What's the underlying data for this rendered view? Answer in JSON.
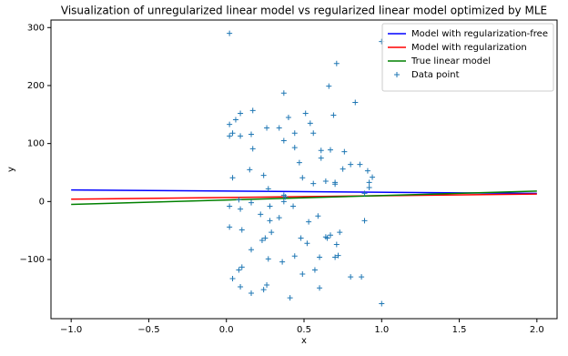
{
  "chart_data": {
    "type": "line",
    "title": "Visualization of unregularized linear model vs regularized linear model optimized by MLE",
    "x_label": "x",
    "y_label": "y",
    "xlim": [
      -1.13,
      2.13
    ],
    "ylim": [
      -202,
      313
    ],
    "xticks": [
      {
        "value": -1,
        "label": "−1.0"
      },
      {
        "value": -0.5,
        "label": "−0.5"
      },
      {
        "value": 0,
        "label": "0.0"
      },
      {
        "value": 0.5,
        "label": "0.5"
      },
      {
        "value": 1,
        "label": "1.0"
      },
      {
        "value": 1.5,
        "label": "1.5"
      },
      {
        "value": 2,
        "label": "2.0"
      }
    ],
    "yticks": [
      {
        "value": -100,
        "label": "−100"
      },
      0,
      100,
      200,
      300
    ],
    "legend": "upper right",
    "series": [
      {
        "name": "Model with regularization-free",
        "type": "line",
        "color": "#0000ff",
        "x": [
          -1,
          2
        ],
        "values": [
          20,
          14
        ]
      },
      {
        "name": "Model with regularization",
        "type": "line",
        "color": "#ff0000",
        "x": [
          -1,
          2
        ],
        "values": [
          4,
          13
        ]
      },
      {
        "name": "True linear model",
        "type": "line",
        "color": "#008000",
        "x": [
          -1,
          2
        ],
        "values": [
          -5,
          18
        ]
      },
      {
        "name": "Data point",
        "type": "scatter",
        "color": "#1f77b4",
        "x": [
          0.02,
          1.0,
          0.71,
          0.66,
          0.83,
          0.37,
          0.17,
          0.09,
          0.51,
          0.69,
          0.02,
          0.06,
          0.4,
          0.26,
          0.54,
          0.02,
          0.04,
          0.09,
          0.16,
          0.44,
          0.56,
          0.34,
          0.37,
          0.17,
          0.44,
          0.61,
          0.67,
          0.76,
          0.61,
          0.47,
          0.8,
          0.86,
          0.75,
          0.91,
          0.94,
          0.92,
          0.92,
          0.7,
          0.7,
          0.64,
          0.56,
          0.49,
          0.04,
          0.15,
          0.24,
          0.27,
          0.37,
          0.38,
          0.37,
          0.08,
          0.16,
          0.02,
          0.09,
          0.28,
          0.43,
          0.89,
          0.22,
          0.59,
          0.34,
          0.28,
          0.53,
          0.02,
          0.1,
          0.29,
          0.73,
          0.89,
          0.67,
          0.64,
          0.65,
          0.48,
          0.23,
          0.25,
          0.71,
          0.52,
          0.16,
          0.44,
          0.6,
          0.7,
          0.72,
          0.27,
          0.36,
          0.1,
          0.08,
          0.57,
          0.04,
          0.49,
          0.8,
          0.87,
          0.26,
          0.24,
          0.09,
          0.6,
          0.16,
          0.41,
          1.0
        ],
        "values": [
          290,
          276,
          238,
          199,
          171,
          187,
          157,
          152,
          152,
          149,
          133,
          141,
          145,
          127,
          135,
          113,
          118,
          113,
          116,
          118,
          118,
          127,
          105,
          91,
          93,
          88,
          89,
          86,
          75,
          67,
          64,
          64,
          56,
          53,
          42,
          33,
          24,
          33,
          30,
          35,
          31,
          41,
          41,
          55,
          45,
          22,
          11,
          8,
          0,
          3,
          -2,
          -8,
          -13,
          -8,
          -8,
          14,
          -22,
          -25,
          -28,
          -33,
          -35,
          -44,
          -49,
          -53,
          -53,
          -33,
          -58,
          -61,
          -63,
          -63,
          -67,
          -63,
          -74,
          -72,
          -83,
          -94,
          -96,
          -96,
          -93,
          -99,
          -104,
          -113,
          -118,
          -118,
          -133,
          -125,
          -130,
          -130,
          -144,
          -152,
          -147,
          -149,
          -158,
          -166,
          -176
        ]
      }
    ]
  }
}
